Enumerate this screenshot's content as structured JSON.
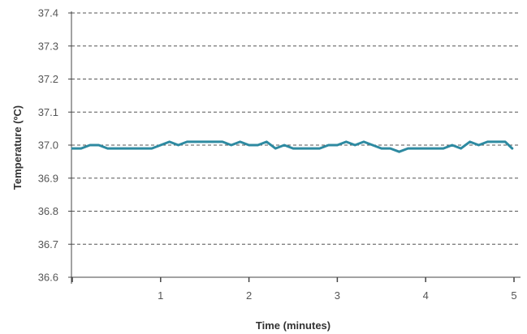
{
  "chart_data": {
    "type": "line",
    "xlabel": "Time (minutes)",
    "ylabel": "Temperature (ºC)",
    "xlim": [
      0,
      5
    ],
    "ylim": [
      36.6,
      37.4
    ],
    "x_ticks": [
      1,
      2,
      3,
      4,
      5
    ],
    "y_ticks": [
      36.6,
      36.7,
      36.8,
      36.9,
      37.0,
      37.1,
      37.2,
      37.3,
      37.4
    ],
    "y_tick_labels": [
      "36.6",
      "36.7",
      "36.8",
      "36.9",
      "37.0",
      "37.1",
      "37.2",
      "37.3",
      "37.4"
    ],
    "grid": "horizontal-dashed",
    "legend": "none",
    "series": [
      {
        "color": "#2e8aa1",
        "x": [
          0,
          0.1,
          0.2,
          0.3,
          0.4,
          0.5,
          0.6,
          0.7,
          0.8,
          0.9,
          1.0,
          1.1,
          1.2,
          1.3,
          1.4,
          1.5,
          1.6,
          1.7,
          1.8,
          1.9,
          2.0,
          2.1,
          2.2,
          2.3,
          2.4,
          2.5,
          2.6,
          2.7,
          2.8,
          2.9,
          3.0,
          3.1,
          3.2,
          3.3,
          3.4,
          3.5,
          3.6,
          3.7,
          3.8,
          3.9,
          4.0,
          4.1,
          4.2,
          4.3,
          4.4,
          4.5,
          4.6,
          4.7,
          4.8,
          4.9,
          4.98
        ],
        "values": [
          36.99,
          36.99,
          37.0,
          37.0,
          36.99,
          36.99,
          36.99,
          36.99,
          36.99,
          36.99,
          37.0,
          37.01,
          37.0,
          37.01,
          37.01,
          37.01,
          37.01,
          37.01,
          37.0,
          37.01,
          37.0,
          37.0,
          37.01,
          36.99,
          37.0,
          36.99,
          36.99,
          36.99,
          36.99,
          37.0,
          37.0,
          37.01,
          37.0,
          37.01,
          37.0,
          36.99,
          36.99,
          36.98,
          36.99,
          36.99,
          36.99,
          36.99,
          36.99,
          37.0,
          36.99,
          37.01,
          37.0,
          37.01,
          37.01,
          37.01,
          36.99
        ]
      }
    ]
  }
}
